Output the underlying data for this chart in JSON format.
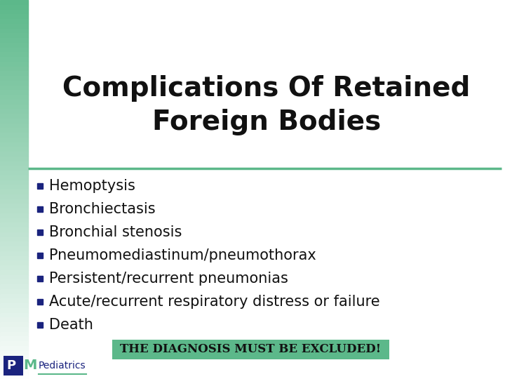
{
  "title_line1": "Complications Of Retained",
  "title_line2": "Foreign Bodies",
  "title_fontsize": 28,
  "title_color": "#111111",
  "bullet_items": [
    "Hemoptysis",
    "Bronchiectasis",
    "Bronchial stenosis",
    "Pneumomediastinum/pneumothorax",
    "Persistent/recurrent pneumonias",
    "Acute/recurrent respiratory distress or failure",
    "Death"
  ],
  "bullet_fontsize": 15,
  "bullet_color": "#111111",
  "bullet_symbol_color": "#1a237e",
  "bg_color": "#ffffff",
  "left_bar_green": "#5cb88a",
  "divider_color": "#5cb88a",
  "banner_text": "THE DIAGNOSIS MUST BE EXCLUDED!",
  "banner_bg": "#5cb88a",
  "banner_text_color": "#111111",
  "banner_fontsize": 12,
  "logo_text": "Pediatrics",
  "logo_green": "#5cb88a",
  "logo_navy": "#1a237e"
}
